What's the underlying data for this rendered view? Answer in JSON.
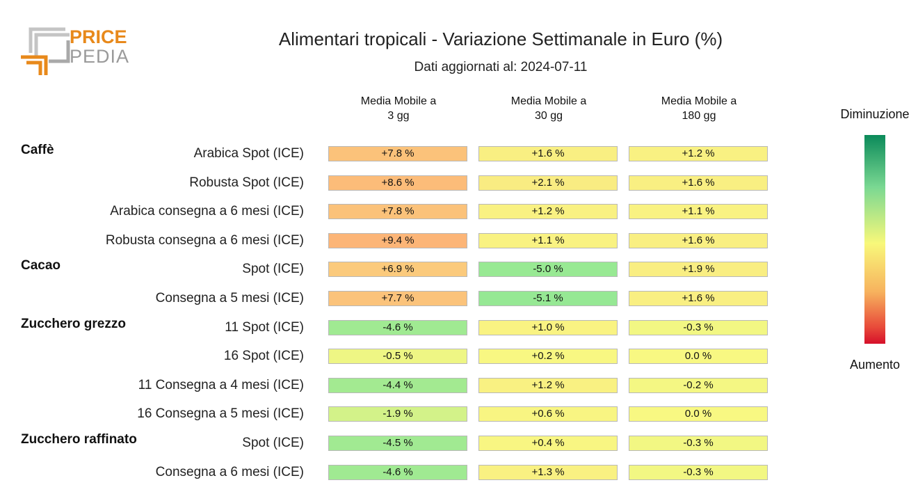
{
  "logo": {
    "word1": "PRICE",
    "word2": "PEDIA"
  },
  "title": "Alimentari tropicali - Variazione Settimanale in Euro (%)",
  "subtitle": "Dati aggiornati al: 2024-07-11",
  "legend": {
    "top": "Diminuzione",
    "bottom": "Aumento"
  },
  "chart_data": {
    "type": "table",
    "columns": [
      "Media Mobile a\n3 gg",
      "Media Mobile a\n30 gg",
      "Media Mobile a\n180 gg"
    ],
    "groups": [
      {
        "name": "Caffè",
        "rows": [
          {
            "label": "Arabica Spot (ICE)",
            "values": [
              7.8,
              1.6,
              1.2
            ],
            "texts": [
              "+7.8 %",
              "+1.6 %",
              "+1.2 %"
            ]
          },
          {
            "label": "Robusta Spot (ICE)",
            "values": [
              8.6,
              2.1,
              1.6
            ],
            "texts": [
              "+8.6 %",
              "+2.1 %",
              "+1.6 %"
            ]
          },
          {
            "label": "Arabica consegna a 6 mesi (ICE)",
            "values": [
              7.8,
              1.2,
              1.1
            ],
            "texts": [
              "+7.8 %",
              "+1.2 %",
              "+1.1 %"
            ]
          },
          {
            "label": "Robusta consegna a 6 mesi (ICE)",
            "values": [
              9.4,
              1.1,
              1.6
            ],
            "texts": [
              "+9.4 %",
              "+1.1 %",
              "+1.6 %"
            ]
          }
        ]
      },
      {
        "name": "Cacao",
        "rows": [
          {
            "label": "Spot (ICE)",
            "values": [
              6.9,
              -5.0,
              1.9
            ],
            "texts": [
              "+6.9 %",
              "-5.0 %",
              "+1.9 %"
            ]
          },
          {
            "label": "Consegna a 5 mesi (ICE)",
            "values": [
              7.7,
              -5.1,
              1.6
            ],
            "texts": [
              "+7.7 %",
              "-5.1 %",
              "+1.6 %"
            ]
          }
        ]
      },
      {
        "name": "Zucchero grezzo",
        "rows": [
          {
            "label": "11 Spot (ICE)",
            "values": [
              -4.6,
              1.0,
              -0.3
            ],
            "texts": [
              "-4.6 %",
              "+1.0 %",
              "-0.3 %"
            ]
          },
          {
            "label": "16 Spot (ICE)",
            "values": [
              -0.5,
              0.2,
              0.0
            ],
            "texts": [
              "-0.5 %",
              "+0.2 %",
              "0.0 %"
            ]
          },
          {
            "label": "11 Consegna a 4 mesi (ICE)",
            "values": [
              -4.4,
              1.2,
              -0.2
            ],
            "texts": [
              "-4.4 %",
              "+1.2 %",
              "-0.2 %"
            ]
          },
          {
            "label": "16 Consegna a 5 mesi (ICE)",
            "values": [
              -1.9,
              0.6,
              0.0
            ],
            "texts": [
              "-1.9 %",
              "+0.6 %",
              "0.0 %"
            ]
          }
        ]
      },
      {
        "name": "Zucchero raffinato",
        "rows": [
          {
            "label": "Spot (ICE)",
            "values": [
              -4.5,
              0.4,
              -0.3
            ],
            "texts": [
              "-4.5 %",
              "+0.4 %",
              "-0.3 %"
            ]
          },
          {
            "label": "Consegna a 6 mesi (ICE)",
            "values": [
              -4.6,
              1.3,
              -0.3
            ],
            "texts": [
              "-4.6 %",
              "+1.3 %",
              "-0.3 %"
            ]
          }
        ]
      }
    ]
  }
}
